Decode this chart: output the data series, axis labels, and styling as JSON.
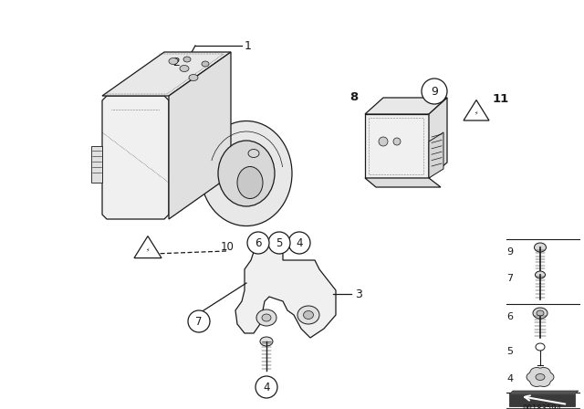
{
  "bg_color": "#ffffff",
  "line_color": "#1a1a1a",
  "image_id": "00183594",
  "lw": 0.9,
  "fig_w": 6.4,
  "fig_h": 4.48,
  "dpi": 100
}
